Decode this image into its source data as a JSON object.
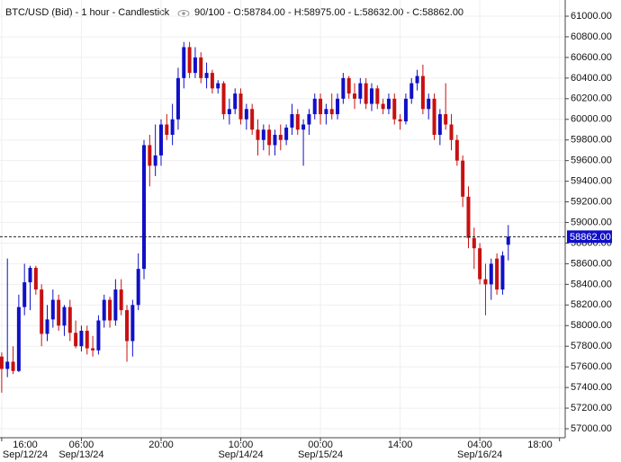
{
  "chart_data": {
    "type": "candlestick",
    "title": "BTC/USD (Bid) - 1 hour - Candlestick",
    "subtitle": "90/100 - O:58784.00 - H:58975.00 - L:58632.00 - C:58862.00",
    "up_color": "#1010c8",
    "down_color": "#c81010",
    "grid": true,
    "x": [
      0,
      1,
      2,
      3,
      4,
      5,
      6,
      7,
      8,
      9,
      10,
      11,
      12,
      13,
      14,
      15,
      16,
      17,
      18,
      19,
      20,
      21,
      22,
      23,
      24,
      25,
      26,
      27,
      28,
      29,
      30,
      31,
      32,
      33,
      34,
      35,
      36,
      37,
      38,
      39,
      40,
      41,
      42,
      43,
      44,
      45,
      46,
      47,
      48,
      49,
      50,
      51,
      52,
      53,
      54,
      55,
      56,
      57,
      58,
      59,
      60,
      61,
      62,
      63,
      64,
      65,
      66,
      67,
      68,
      69,
      70,
      71,
      72,
      73,
      74,
      75,
      76,
      77,
      78,
      79,
      80,
      81,
      82,
      83,
      84,
      85,
      86,
      87,
      88,
      89
    ],
    "open": [
      57700,
      57580,
      57650,
      57560,
      58180,
      58420,
      58560,
      58350,
      57920,
      58060,
      58250,
      58000,
      58180,
      57930,
      57800,
      57950,
      57780,
      57760,
      58050,
      58250,
      58050,
      58350,
      58150,
      57850,
      58200,
      58550,
      59750,
      59550,
      59650,
      59950,
      59850,
      60000,
      60400,
      60700,
      60450,
      60600,
      60400,
      60450,
      60300,
      60350,
      60050,
      60100,
      60250,
      60000,
      60100,
      59900,
      59800,
      59900,
      59750,
      59850,
      59800,
      59920,
      60050,
      59900,
      59950,
      60050,
      60200,
      60050,
      60100,
      60050,
      60200,
      60400,
      60250,
      60200,
      60350,
      60150,
      60300,
      60150,
      60100,
      60200,
      60000,
      59980,
      60200,
      60350,
      60420,
      60100,
      60200,
      59850,
      60050,
      59950,
      59800,
      59600,
      59250,
      58850,
      58750,
      58450,
      58400,
      58650,
      58350,
      58784
    ],
    "high": [
      57740,
      58650,
      57800,
      58300,
      58600,
      58580,
      58580,
      58400,
      58200,
      58350,
      58300,
      58200,
      58250,
      58050,
      58000,
      58000,
      57900,
      58100,
      58300,
      58280,
      58450,
      58450,
      58200,
      58250,
      58700,
      59800,
      59850,
      59950,
      60000,
      60050,
      60150,
      60500,
      60750,
      60750,
      60700,
      60650,
      60550,
      60480,
      60380,
      60370,
      60200,
      60300,
      60300,
      60150,
      60150,
      60000,
      59950,
      59950,
      59900,
      59950,
      59950,
      60150,
      60100,
      60000,
      60100,
      60250,
      60250,
      60150,
      60250,
      60250,
      60450,
      60420,
      60350,
      60400,
      60400,
      60350,
      60330,
      60200,
      60250,
      60250,
      60050,
      60250,
      60400,
      60480,
      60530,
      60250,
      60250,
      60100,
      60350,
      60050,
      59850,
      59650,
      59350,
      58950,
      58800,
      58600,
      58650,
      58700,
      58720,
      58975
    ],
    "low": [
      57350,
      57500,
      57530,
      57550,
      58100,
      58150,
      58300,
      57800,
      57850,
      57980,
      57950,
      57900,
      57850,
      57780,
      57750,
      57720,
      57700,
      57720,
      57980,
      57980,
      58000,
      58100,
      57650,
      57700,
      58150,
      58450,
      59350,
      59450,
      59550,
      59800,
      59750,
      59900,
      60300,
      60400,
      60400,
      60350,
      60300,
      60250,
      60250,
      60000,
      59950,
      60050,
      59950,
      59900,
      59850,
      59650,
      59700,
      59650,
      59650,
      59700,
      59750,
      59850,
      59850,
      59550,
      59850,
      60000,
      59950,
      59950,
      60000,
      60000,
      60150,
      60200,
      60100,
      60150,
      60100,
      60080,
      60100,
      60050,
      60050,
      59950,
      59900,
      59950,
      60150,
      60280,
      60050,
      60000,
      59800,
      59750,
      59900,
      59700,
      59550,
      59150,
      58750,
      58550,
      58400,
      58100,
      58250,
      58300,
      58300,
      58632
    ],
    "close": [
      57580,
      57650,
      57560,
      58180,
      58420,
      58560,
      58350,
      57920,
      58060,
      58250,
      58000,
      58180,
      57930,
      57800,
      57950,
      57780,
      57760,
      58050,
      58250,
      58050,
      58350,
      58150,
      57850,
      58200,
      58550,
      59750,
      59550,
      59650,
      59950,
      59850,
      60000,
      60400,
      60700,
      60450,
      60600,
      60400,
      60450,
      60300,
      60350,
      60050,
      60100,
      60250,
      60000,
      60100,
      59900,
      59800,
      59900,
      59750,
      59850,
      59800,
      59920,
      60050,
      59900,
      59950,
      60050,
      60200,
      60050,
      60100,
      60050,
      60200,
      60400,
      60250,
      60200,
      60350,
      60150,
      60300,
      60150,
      60100,
      60200,
      60000,
      59980,
      60200,
      60350,
      60420,
      60100,
      60200,
      59850,
      60050,
      59950,
      59800,
      59600,
      59250,
      58850,
      58750,
      58450,
      58400,
      58600,
      58350,
      58680,
      58862
    ],
    "xlim": [
      -0.3,
      99
    ],
    "xticks": [
      {
        "value": 0,
        "label": "16:00",
        "date": "Sep/12/24"
      },
      {
        "value": 14,
        "label": "06:00",
        "date": "Sep/13/24"
      },
      {
        "value": 28,
        "label": "20:00"
      },
      {
        "value": 42,
        "label": "10:00",
        "date": "Sep/14/24"
      },
      {
        "value": 56,
        "label": "00:00",
        "date": "Sep/15/24"
      },
      {
        "value": 70,
        "label": "14:00"
      },
      {
        "value": 84,
        "label": "04:00",
        "date": "Sep/16/24"
      },
      {
        "value": 98,
        "label": "18:00"
      }
    ],
    "ylim": [
      56913,
      61157
    ],
    "yticks": [
      {
        "value": 57000,
        "label": "57000.00"
      },
      {
        "value": 57200,
        "label": "57200.00"
      },
      {
        "value": 57400,
        "label": "57400.00"
      },
      {
        "value": 57600,
        "label": "57600.00"
      },
      {
        "value": 57800,
        "label": "57800.00"
      },
      {
        "value": 58000,
        "label": "58000.00"
      },
      {
        "value": 58200,
        "label": "58200.00"
      },
      {
        "value": 58400,
        "label": "58400.00"
      },
      {
        "value": 58600,
        "label": "58600.00"
      },
      {
        "value": 58800,
        "label": "58800.00"
      },
      {
        "value": 59000,
        "label": "59000.00"
      },
      {
        "value": 59200,
        "label": "59200.00"
      },
      {
        "value": 59400,
        "label": "59400.00"
      },
      {
        "value": 59600,
        "label": "59600.00"
      },
      {
        "value": 59800,
        "label": "59800.00"
      },
      {
        "value": 60000,
        "label": "60000.00"
      },
      {
        "value": 60200,
        "label": "60200.00"
      },
      {
        "value": 60400,
        "label": "60400.00"
      },
      {
        "value": 60600,
        "label": "60600.00"
      },
      {
        "value": 60800,
        "label": "60800.00"
      },
      {
        "value": 61000,
        "label": "61000.00"
      }
    ],
    "last_price": {
      "value": 58862,
      "label": "58862.00"
    }
  }
}
